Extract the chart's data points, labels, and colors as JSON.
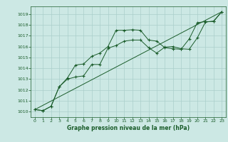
{
  "title": "Graphe pression niveau de la mer (hPa)",
  "background_color": "#cce8e4",
  "grid_color": "#aacfcb",
  "line_color": "#1a5c2a",
  "xlim": [
    -0.5,
    23.5
  ],
  "ylim": [
    1009.5,
    1019.7
  ],
  "xticks": [
    0,
    1,
    2,
    3,
    4,
    5,
    6,
    7,
    8,
    9,
    10,
    11,
    12,
    13,
    14,
    15,
    16,
    17,
    18,
    19,
    20,
    21,
    22,
    23
  ],
  "yticks": [
    1010,
    1011,
    1012,
    1013,
    1014,
    1015,
    1016,
    1017,
    1018,
    1019
  ],
  "series1_x": [
    0,
    1,
    2,
    3,
    4,
    5,
    6,
    7,
    8,
    9,
    10,
    11,
    12,
    13,
    14,
    15,
    16,
    17,
    18,
    19,
    20,
    21,
    22,
    23
  ],
  "series1_y": [
    1010.2,
    1010.1,
    1010.5,
    1012.3,
    1013.1,
    1014.3,
    1014.4,
    1015.1,
    1015.4,
    1016.0,
    1017.5,
    1017.5,
    1017.55,
    1017.5,
    1016.6,
    1016.5,
    1015.9,
    1015.8,
    1015.75,
    1016.7,
    1018.2,
    1018.3,
    1018.3,
    1019.2
  ],
  "series2_x": [
    0,
    1,
    2,
    3,
    4,
    5,
    6,
    7,
    8,
    9,
    10,
    11,
    12,
    13,
    14,
    15,
    16,
    17,
    18,
    19,
    20,
    21,
    22,
    23
  ],
  "series2_y": [
    1010.2,
    1010.1,
    1010.5,
    1012.3,
    1013.0,
    1013.2,
    1013.3,
    1014.35,
    1014.35,
    1015.85,
    1016.1,
    1016.5,
    1016.6,
    1016.6,
    1015.9,
    1015.4,
    1015.95,
    1016.0,
    1015.8,
    1015.75,
    1016.8,
    1018.25,
    1018.35,
    1019.2
  ],
  "series3_x": [
    0,
    23
  ],
  "series3_y": [
    1010.2,
    1019.2
  ]
}
